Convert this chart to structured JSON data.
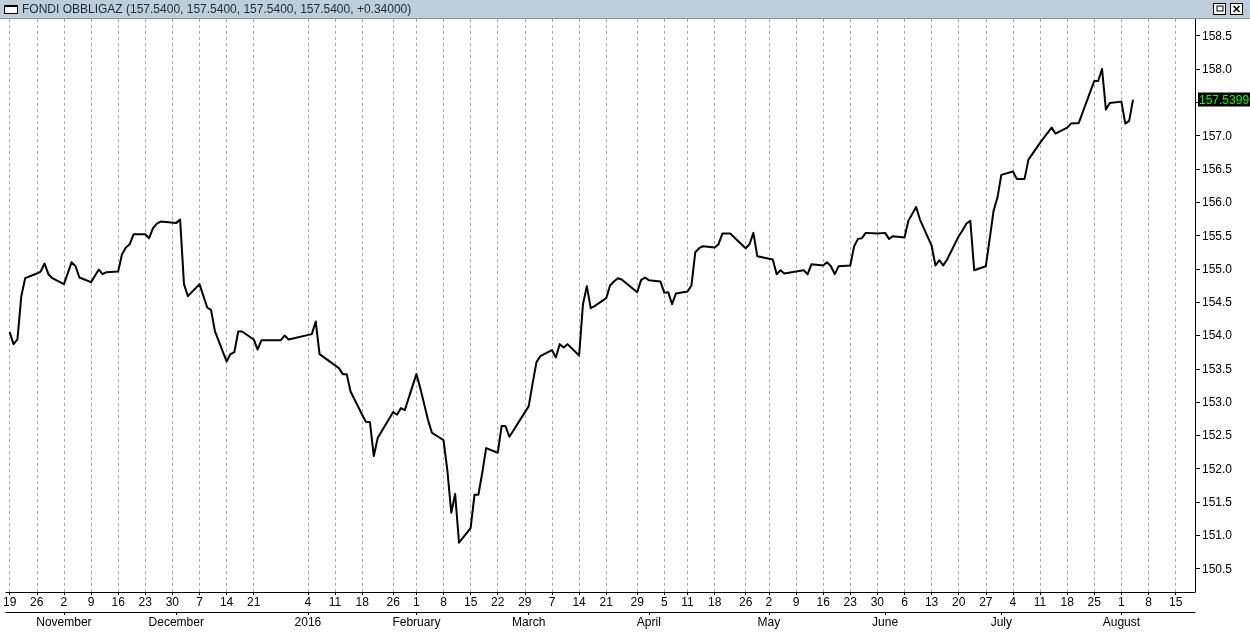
{
  "chart_data": {
    "type": "line",
    "title": "FONDI OBBLIGAZ (157.5400, 157.5400, 157.5400, 157.5400, +0.34000)",
    "x": [
      "2015-10-19",
      "2015-10-20",
      "2015-10-21",
      "2015-10-22",
      "2015-10-23",
      "2015-10-26",
      "2015-10-27",
      "2015-10-28",
      "2015-10-29",
      "2015-10-30",
      "2015-11-02",
      "2015-11-04",
      "2015-11-05",
      "2015-11-06",
      "2015-11-09",
      "2015-11-11",
      "2015-11-12",
      "2015-11-13",
      "2015-11-16",
      "2015-11-17",
      "2015-11-18",
      "2015-11-19",
      "2015-11-20",
      "2015-11-23",
      "2015-11-24",
      "2015-11-25",
      "2015-11-26",
      "2015-11-27",
      "2015-12-01",
      "2015-12-02",
      "2015-12-03",
      "2015-12-04",
      "2015-12-07",
      "2015-12-09",
      "2015-12-10",
      "2015-12-11",
      "2015-12-14",
      "2015-12-15",
      "2015-12-16",
      "2015-12-17",
      "2015-12-18",
      "2015-12-21",
      "2015-12-22",
      "2015-12-23",
      "2015-12-28",
      "2015-12-29",
      "2015-12-30",
      "2016-01-05",
      "2016-01-06",
      "2016-01-07",
      "2016-01-12",
      "2016-01-13",
      "2016-01-14",
      "2016-01-15",
      "2016-01-18",
      "2016-01-19",
      "2016-01-20",
      "2016-01-21",
      "2016-01-22",
      "2016-01-26",
      "2016-01-27",
      "2016-01-28",
      "2016-01-29",
      "2016-02-01",
      "2016-02-02",
      "2016-02-03",
      "2016-02-04",
      "2016-02-05",
      "2016-02-08",
      "2016-02-09",
      "2016-02-10",
      "2016-02-11",
      "2016-02-12",
      "2016-02-15",
      "2016-02-16",
      "2016-02-17",
      "2016-02-18",
      "2016-02-19",
      "2016-02-22",
      "2016-02-23",
      "2016-02-24",
      "2016-02-25",
      "2016-02-26",
      "2016-03-01",
      "2016-03-02",
      "2016-03-03",
      "2016-03-04",
      "2016-03-07",
      "2016-03-08",
      "2016-03-09",
      "2016-03-10",
      "2016-03-11",
      "2016-03-14",
      "2016-03-15",
      "2016-03-16",
      "2016-03-17",
      "2016-03-18",
      "2016-03-21",
      "2016-03-22",
      "2016-03-23",
      "2016-03-24",
      "2016-03-25",
      "2016-03-29",
      "2016-03-30",
      "2016-03-31",
      "2016-04-01",
      "2016-04-04",
      "2016-04-05",
      "2016-04-06",
      "2016-04-07",
      "2016-04-08",
      "2016-04-11",
      "2016-04-12",
      "2016-04-13",
      "2016-04-14",
      "2016-04-15",
      "2016-04-18",
      "2016-04-19",
      "2016-04-20",
      "2016-04-22",
      "2016-04-26",
      "2016-04-27",
      "2016-04-28",
      "2016-04-29",
      "2016-05-03",
      "2016-05-04",
      "2016-05-05",
      "2016-05-06",
      "2016-05-09",
      "2016-05-11",
      "2016-05-12",
      "2016-05-13",
      "2016-05-16",
      "2016-05-17",
      "2016-05-18",
      "2016-05-19",
      "2016-05-20",
      "2016-05-23",
      "2016-05-24",
      "2016-05-25",
      "2016-05-26",
      "2016-05-27",
      "2016-05-30",
      "2016-06-01",
      "2016-06-02",
      "2016-06-03",
      "2016-06-06",
      "2016-06-07",
      "2016-06-09",
      "2016-06-10",
      "2016-06-13",
      "2016-06-14",
      "2016-06-15",
      "2016-06-16",
      "2016-06-17",
      "2016-06-20",
      "2016-06-21",
      "2016-06-22",
      "2016-06-23",
      "2016-06-24",
      "2016-06-27",
      "2016-06-28",
      "2016-06-29",
      "2016-06-30",
      "2016-07-01",
      "2016-07-04",
      "2016-07-05",
      "2016-07-07",
      "2016-07-08",
      "2016-07-11",
      "2016-07-12",
      "2016-07-14",
      "2016-07-15",
      "2016-07-18",
      "2016-07-19",
      "2016-07-21",
      "2016-07-25",
      "2016-07-26",
      "2016-07-27",
      "2016-07-28",
      "2016-07-29",
      "2016-08-01",
      "2016-08-02",
      "2016-08-03",
      "2016-08-04"
    ],
    "series": [
      {
        "color": "#000000",
        "values": [
          154.05,
          153.87,
          153.94,
          154.59,
          154.86,
          154.93,
          154.96,
          155.08,
          154.92,
          154.86,
          154.77,
          155.1,
          155.04,
          154.87,
          154.8,
          154.99,
          154.92,
          154.95,
          154.96,
          155.22,
          155.32,
          155.37,
          155.52,
          155.52,
          155.46,
          155.61,
          155.68,
          155.71,
          155.69,
          155.74,
          154.77,
          154.59,
          154.77,
          154.42,
          154.38,
          154.06,
          153.61,
          153.72,
          153.75,
          154.06,
          154.06,
          153.94,
          153.79,
          153.93,
          153.93,
          154.0,
          153.94,
          154.02,
          154.21,
          153.72,
          153.51,
          153.42,
          153.42,
          153.16,
          152.81,
          152.7,
          152.7,
          152.19,
          152.46,
          152.85,
          152.81,
          152.91,
          152.88,
          153.42,
          153.21,
          152.97,
          152.73,
          152.54,
          152.43,
          151.97,
          151.34,
          151.62,
          150.89,
          151.11,
          151.61,
          151.61,
          151.94,
          152.31,
          152.24,
          152.64,
          152.64,
          152.48,
          152.57,
          152.94,
          153.28,
          153.6,
          153.69,
          153.78,
          153.67,
          153.87,
          153.82,
          153.87,
          153.7,
          154.47,
          154.74,
          154.41,
          154.44,
          154.56,
          154.75,
          154.81,
          154.86,
          154.84,
          154.65,
          154.83,
          154.87,
          154.83,
          154.81,
          154.64,
          154.65,
          154.47,
          154.63,
          154.66,
          154.75,
          155.25,
          155.31,
          155.34,
          155.32,
          155.37,
          155.53,
          155.53,
          155.31,
          155.37,
          155.54,
          155.19,
          155.14,
          154.92,
          154.98,
          154.93,
          154.96,
          154.98,
          154.92,
          155.07,
          155.05,
          155.1,
          155.04,
          154.92,
          155.04,
          155.05,
          155.34,
          155.45,
          155.46,
          155.54,
          155.53,
          155.54,
          155.45,
          155.49,
          155.47,
          155.72,
          155.93,
          155.74,
          155.35,
          155.05,
          155.13,
          155.05,
          155.14,
          155.49,
          155.58,
          155.68,
          155.72,
          154.98,
          155.04,
          155.45,
          155.87,
          156.07,
          156.41,
          156.46,
          156.35,
          156.35,
          156.64,
          156.89,
          156.97,
          157.12,
          157.03,
          157.12,
          157.18,
          157.19,
          157.82,
          157.82,
          158.0,
          157.39,
          157.49,
          157.51,
          157.18,
          157.22,
          157.54
        ]
      }
    ],
    "xlim": [
      "2015-10-18",
      "2016-08-20"
    ],
    "xticks": [
      {
        "value": "2015-10-19",
        "label": "19"
      },
      {
        "value": "2015-10-26",
        "label": "26"
      },
      {
        "value": "2015-11-02",
        "label": "2"
      },
      {
        "value": "2015-11-09",
        "label": "9"
      },
      {
        "value": "2015-11-16",
        "label": "16"
      },
      {
        "value": "2015-11-23",
        "label": "23"
      },
      {
        "value": "2015-11-30",
        "label": "30"
      },
      {
        "value": "2015-12-07",
        "label": "7"
      },
      {
        "value": "2015-12-14",
        "label": "14"
      },
      {
        "value": "2015-12-21",
        "label": "21"
      },
      {
        "value": "2016-01-04",
        "label": "4"
      },
      {
        "value": "2016-01-11",
        "label": "11"
      },
      {
        "value": "2016-01-18",
        "label": "18"
      },
      {
        "value": "2016-01-26",
        "label": "26"
      },
      {
        "value": "2016-02-01",
        "label": "1"
      },
      {
        "value": "2016-02-08",
        "label": "8"
      },
      {
        "value": "2016-02-15",
        "label": "15"
      },
      {
        "value": "2016-02-22",
        "label": "22"
      },
      {
        "value": "2016-02-29",
        "label": "29"
      },
      {
        "value": "2016-03-07",
        "label": "7"
      },
      {
        "value": "2016-03-14",
        "label": "14"
      },
      {
        "value": "2016-03-21",
        "label": "21"
      },
      {
        "value": "2016-03-29",
        "label": "29"
      },
      {
        "value": "2016-04-05",
        "label": "5"
      },
      {
        "value": "2016-04-11",
        "label": "11"
      },
      {
        "value": "2016-04-18",
        "label": "18"
      },
      {
        "value": "2016-04-26",
        "label": "26"
      },
      {
        "value": "2016-05-02",
        "label": "2"
      },
      {
        "value": "2016-05-09",
        "label": "9"
      },
      {
        "value": "2016-05-16",
        "label": "16"
      },
      {
        "value": "2016-05-23",
        "label": "23"
      },
      {
        "value": "2016-05-30",
        "label": "30"
      },
      {
        "value": "2016-06-06",
        "label": "6"
      },
      {
        "value": "2016-06-13",
        "label": "13"
      },
      {
        "value": "2016-06-20",
        "label": "20"
      },
      {
        "value": "2016-06-27",
        "label": "27"
      },
      {
        "value": "2016-07-04",
        "label": "4"
      },
      {
        "value": "2016-07-11",
        "label": "11"
      },
      {
        "value": "2016-07-18",
        "label": "18"
      },
      {
        "value": "2016-07-25",
        "label": "25"
      },
      {
        "value": "2016-08-01",
        "label": "1"
      },
      {
        "value": "2016-08-08",
        "label": "8"
      },
      {
        "value": "2016-08-15",
        "label": "15"
      }
    ],
    "x2lim": [
      "2015-10-18",
      "2016-08-20"
    ],
    "x2ticks": [
      {
        "value": "2015-11-02",
        "label": "November"
      },
      {
        "value": "2015-12-01",
        "label": "December"
      },
      {
        "value": "2016-01-04",
        "label": "2016"
      },
      {
        "value": "2016-02-01",
        "label": "February"
      },
      {
        "value": "2016-03-01",
        "label": "March"
      },
      {
        "value": "2016-04-01",
        "label": "April"
      },
      {
        "value": "2016-05-02",
        "label": "May"
      },
      {
        "value": "2016-06-01",
        "label": "June"
      },
      {
        "value": "2016-07-01",
        "label": "July"
      },
      {
        "value": "2016-08-01",
        "label": "August"
      }
    ],
    "ylim": [
      150.15,
      158.75
    ],
    "yticks": [
      {
        "value": 150.5,
        "label": "150.5"
      },
      {
        "value": 151,
        "label": "151.0"
      },
      {
        "value": 151.5,
        "label": "151.5"
      },
      {
        "value": 152,
        "label": "152.0"
      },
      {
        "value": 152.5,
        "label": "152.5"
      },
      {
        "value": 153,
        "label": "153.0"
      },
      {
        "value": 153.5,
        "label": "153.5"
      },
      {
        "value": 154,
        "label": "154.0"
      },
      {
        "value": 154.5,
        "label": "154.5"
      },
      {
        "value": 155,
        "label": "155.0"
      },
      {
        "value": 155.5,
        "label": "155.5"
      },
      {
        "value": 156,
        "label": "156.0"
      },
      {
        "value": 156.5,
        "label": "156.5"
      },
      {
        "value": 157,
        "label": "157.0"
      },
      {
        "value": 157.5,
        "label": null
      },
      {
        "value": 158,
        "label": "158.0"
      },
      {
        "value": 158.5,
        "label": "158.5"
      }
    ],
    "annotations": [
      "157.5399"
    ],
    "grid": "x",
    "marker": "none",
    "line_style": "solid"
  }
}
